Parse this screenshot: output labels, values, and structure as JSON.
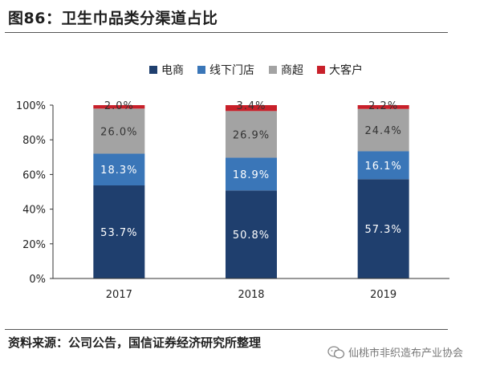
{
  "figure": {
    "title": "图86：卫生巾品类分渠道占比",
    "source": "资料来源：公司公告，国信证券经济研究所整理",
    "watermark": "仙桃市非织造布产业协会"
  },
  "colors": {
    "电商": "#1f3f6e",
    "线下门店": "#3a76b8",
    "商超": "#a3a3a3",
    "大客户": "#c8202a"
  },
  "chart_data": {
    "type": "bar",
    "stacked": true,
    "categories": [
      "2017",
      "2018",
      "2019"
    ],
    "series": [
      {
        "name": "电商",
        "values": [
          53.7,
          50.8,
          57.3
        ],
        "labels": [
          "53.7%",
          "50.8%",
          "57.3%"
        ]
      },
      {
        "name": "线下门店",
        "values": [
          18.3,
          18.9,
          16.1
        ],
        "labels": [
          "18.3%",
          "18.9%",
          "16.1%"
        ]
      },
      {
        "name": "商超",
        "values": [
          26.0,
          26.9,
          24.4
        ],
        "labels": [
          "26.0%",
          "26.9%",
          "24.4%"
        ]
      },
      {
        "name": "大客户",
        "values": [
          2.0,
          3.4,
          2.2
        ],
        "labels": [
          "2.0%",
          "3.4%",
          "2.2%"
        ]
      }
    ],
    "ylim": [
      0,
      100
    ],
    "yticks": [
      "0%",
      "20%",
      "40%",
      "60%",
      "80%",
      "100%"
    ],
    "legend": "top-center",
    "grid": false
  }
}
